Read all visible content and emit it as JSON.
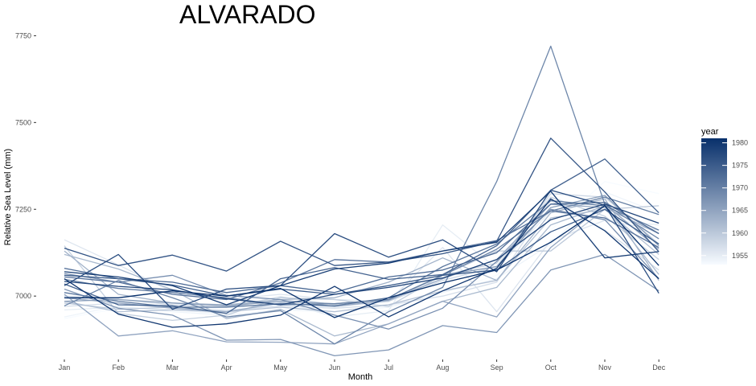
{
  "chart_data": {
    "type": "line",
    "title": "ALVARADO",
    "xlabel": "Month",
    "ylabel": "Relative Sea Level (mm)",
    "categories": [
      "Jan",
      "Feb",
      "Mar",
      "Apr",
      "May",
      "Jun",
      "Jul",
      "Aug",
      "Sep",
      "Oct",
      "Nov",
      "Dec"
    ],
    "ylim": [
      6822,
      7795
    ],
    "yticks": [
      7000,
      7250,
      7500,
      7750
    ],
    "ytick_labels": [
      "7000",
      "7250",
      "7500",
      "7750"
    ],
    "grid": false,
    "legend": {
      "title": "year",
      "position": "right",
      "type": "colorbar",
      "range": [
        1953,
        1981
      ],
      "ticks": [
        1955,
        1960,
        1965,
        1970,
        1975,
        1980
      ],
      "tick_labels": [
        "1955",
        "1960",
        "1965",
        "1970",
        "1975",
        "1980"
      ],
      "color_low": "#f7fbff",
      "color_high": "#08306b"
    },
    "series": [
      {
        "year": 1953,
        "values": [
          6935,
          6965,
          6980,
          6960,
          6975,
          6968,
          6972,
          7010,
          7060,
          7190,
          7330,
          7295
        ]
      },
      {
        "year": 1954,
        "values": [
          6940,
          6972,
          6955,
          6945,
          6960,
          6955,
          6968,
          7010,
          7050,
          7150,
          7300,
          7240
        ]
      },
      {
        "year": 1955,
        "values": [
          6960,
          6968,
          6960,
          6950,
          6985,
          6940,
          6958,
          7205,
          7080,
          7245,
          7220,
          7205
        ]
      },
      {
        "year": 1956,
        "values": [
          7162,
          7090,
          7012,
          6990,
          7005,
          6990,
          6985,
          7140,
          6955,
          7160,
          7218,
          7190
        ]
      },
      {
        "year": 1957,
        "values": [
          6970,
          6980,
          6968,
          6958,
          6972,
          6965,
          6975,
          7000,
          7040,
          7275,
          7190,
          7075
        ]
      },
      {
        "year": 1958,
        "values": [
          7000,
          6990,
          6975,
          6968,
          6998,
          6975,
          6985,
          7045,
          7085,
          7295,
          7285,
          7150
        ]
      },
      {
        "year": 1959,
        "values": [
          7145,
          6950,
          6930,
          6945,
          6995,
          6990,
          6970,
          7060,
          7095,
          7285,
          7230,
          7105
        ]
      },
      {
        "year": 1960,
        "values": [
          6980,
          6962,
          6968,
          6968,
          6990,
          6970,
          6985,
          7060,
          7130,
          7130,
          7250,
          7260
        ]
      },
      {
        "year": 1961,
        "values": [
          6985,
          6955,
          6960,
          6955,
          6968,
          6955,
          6975,
          7015,
          7045,
          7225,
          7250,
          7120
        ]
      },
      {
        "year": 1962,
        "values": [
          7120,
          7078,
          7018,
          6935,
          6962,
          6885,
          6920,
          6985,
          7025,
          7205,
          7260,
          7062
        ]
      },
      {
        "year": 1963,
        "values": [
          7130,
          7005,
          6980,
          6975,
          6990,
          6995,
          7040,
          7110,
          7045,
          7240,
          7280,
          7045
        ]
      },
      {
        "year": 1964,
        "values": [
          6995,
          6980,
          6965,
          6955,
          6980,
          6970,
          6988,
          7050,
          7105,
          7265,
          7255,
          7180
        ]
      },
      {
        "year": 1965,
        "values": [
          7005,
          6885,
          6900,
          6868,
          6867,
          6862,
          6920,
          6985,
          6940,
          7140,
          7265,
          7135
        ]
      },
      {
        "year": 1966,
        "values": [
          6985,
          6990,
          6980,
          6972,
          6985,
          6978,
          6990,
          7060,
          7085,
          7255,
          7290,
          7145
        ]
      },
      {
        "year": 1967,
        "values": [
          7020,
          6965,
          6945,
          6873,
          6875,
          6828,
          6845,
          6915,
          6895,
          7075,
          7120,
          7015
        ]
      },
      {
        "year": 1968,
        "values": [
          7065,
          7040,
          7060,
          7002,
          6990,
          6945,
          6905,
          6965,
          7100,
          7250,
          7220,
          7050
        ]
      },
      {
        "year": 1969,
        "values": [
          6972,
          7045,
          6995,
          6940,
          6958,
          6862,
          6955,
          7025,
          7330,
          7720,
          7265,
          7165
        ]
      },
      {
        "year": 1970,
        "values": [
          7048,
          7022,
          7010,
          6995,
          6975,
          6978,
          6990,
          7060,
          7135,
          7245,
          7285,
          7235
        ]
      },
      {
        "year": 1971,
        "values": [
          7010,
          6985,
          6968,
          6968,
          6978,
          6972,
          6995,
          7085,
          7150,
          7275,
          7260,
          7190
        ]
      },
      {
        "year": 1972,
        "values": [
          7055,
          7040,
          7005,
          6990,
          7038,
          7105,
          7098,
          7130,
          7160,
          7245,
          7225,
          7140
        ]
      },
      {
        "year": 1973,
        "values": [
          7080,
          7050,
          7040,
          7010,
          7030,
          7010,
          7055,
          7075,
          7125,
          7265,
          7270,
          7180
        ]
      },
      {
        "year": 1974,
        "values": [
          7035,
          6975,
          6972,
          6950,
          7050,
          7082,
          7048,
          7062,
          7145,
          7305,
          7395,
          7240
        ]
      },
      {
        "year": 1975,
        "values": [
          7060,
          7050,
          7032,
          7000,
          7020,
          7005,
          7030,
          7060,
          7075,
          7185,
          7250,
          7150
        ]
      },
      {
        "year": 1976,
        "values": [
          7138,
          7088,
          7118,
          7072,
          7158,
          7088,
          7098,
          7122,
          7158,
          7455,
          7300,
          7128
        ]
      },
      {
        "year": 1977,
        "values": [
          7030,
          7120,
          6962,
          7020,
          7030,
          7180,
          7112,
          7162,
          7070,
          7305,
          7262,
          7008
        ]
      },
      {
        "year": 1978,
        "values": [
          7042,
          7028,
          7018,
          6992,
          6975,
          7005,
          7025,
          7052,
          7105,
          7220,
          7265,
          7210
        ]
      },
      {
        "year": 1979,
        "values": [
          7070,
          7055,
          7030,
          6975,
          7030,
          7078,
          7095,
          7130,
          7155,
          7302,
          7110,
          7128
        ]
      },
      {
        "year": 1980,
        "values": [
          7050,
          6948,
          6910,
          6920,
          6945,
          7028,
          6940,
          7015,
          7080,
          7280,
          7188,
          7050
        ]
      },
      {
        "year": 1981,
        "values": [
          6995,
          6995,
          7015,
          7000,
          7022,
          6938,
          6995,
          7038,
          7075,
          7155,
          7260,
          7088
        ]
      }
    ]
  }
}
